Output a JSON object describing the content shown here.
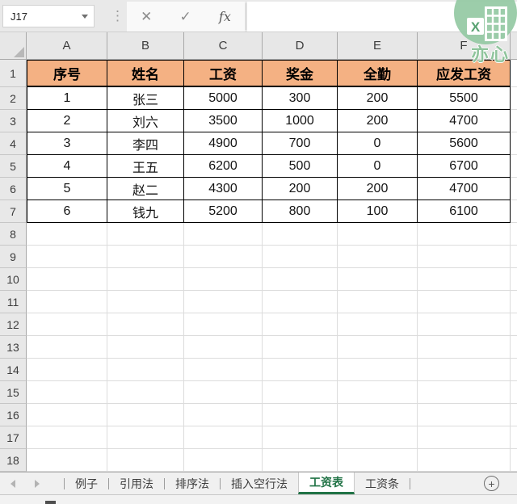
{
  "name_box": {
    "value": "J17"
  },
  "formula_bar": {
    "value": "",
    "cancel_glyph": "✕",
    "enter_glyph": "✓",
    "fx_glyph": "fx"
  },
  "watermark": {
    "text": "亦心"
  },
  "grid": {
    "column_letters": [
      "A",
      "B",
      "C",
      "D",
      "E",
      "F"
    ],
    "row_numbers": [
      "1",
      "2",
      "3",
      "4",
      "5",
      "6",
      "7",
      "8",
      "9",
      "10",
      "11",
      "12",
      "13",
      "14",
      "15",
      "16",
      "17",
      "18"
    ]
  },
  "table": {
    "headers": [
      "序号",
      "姓名",
      "工资",
      "奖金",
      "全勤",
      "应发工资"
    ],
    "rows": [
      [
        "1",
        "张三",
        "5000",
        "300",
        "200",
        "5500"
      ],
      [
        "2",
        "刘六",
        "3500",
        "1000",
        "200",
        "4700"
      ],
      [
        "3",
        "李四",
        "4900",
        "700",
        "0",
        "5600"
      ],
      [
        "4",
        "王五",
        "6200",
        "500",
        "0",
        "6700"
      ],
      [
        "5",
        "赵二",
        "4300",
        "200",
        "200",
        "4700"
      ],
      [
        "6",
        "钱九",
        "5200",
        "800",
        "100",
        "6100"
      ]
    ]
  },
  "sheet_tabs": {
    "tabs": [
      {
        "label": "例子",
        "active": false
      },
      {
        "label": "引用法",
        "active": false
      },
      {
        "label": "排序法",
        "active": false
      },
      {
        "label": "插入空行法",
        "active": false
      },
      {
        "label": "工资表",
        "active": true
      },
      {
        "label": "工资条",
        "active": false
      }
    ],
    "add_label": "+"
  },
  "colors": {
    "header_fill": "#F4B183",
    "active_tab_green": "#217346",
    "watermark_green": "#94c9a3",
    "watermark_icon_green": "#58a272"
  }
}
